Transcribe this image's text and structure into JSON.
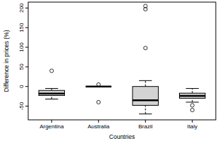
{
  "chart_data": {
    "type": "box",
    "x_label": "Countries",
    "y_label": "Difference in prices (%)",
    "categories": [
      "Argentina",
      "Australia",
      "Brazil",
      "Italy"
    ],
    "boxes": [
      {
        "min": -32,
        "q1": -23,
        "median": -18,
        "q3": -10,
        "max": -5,
        "outliers": [
          40
        ]
      },
      {
        "min": 0,
        "q1": 0,
        "median": 0,
        "q3": 0,
        "max": 0,
        "outliers": [
          5,
          -40
        ]
      },
      {
        "min": -70,
        "q1": -48,
        "median": -35,
        "q3": 0,
        "max": 15,
        "outliers": [
          98,
          197,
          205
        ]
      },
      {
        "min": -40,
        "q1": -30,
        "median": -24,
        "q3": -17,
        "max": -5,
        "outliers": [
          -48,
          -60
        ]
      }
    ],
    "color": "#d3d3d3",
    "ylim": [
      -85,
      215
    ],
    "yticks": [
      -50,
      0,
      50,
      100,
      150,
      200
    ]
  }
}
